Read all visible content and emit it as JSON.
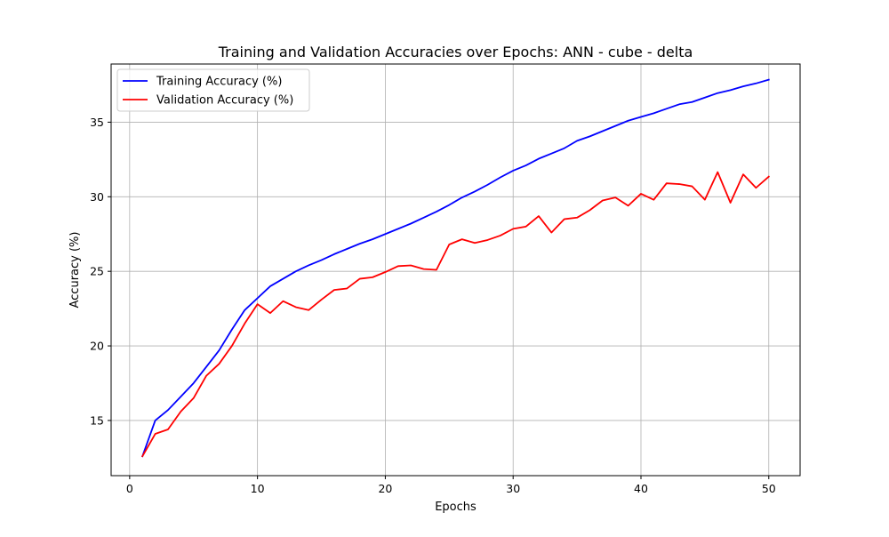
{
  "chart_data": {
    "type": "line",
    "title": "Training and Validation Accuracies over Epochs: ANN - cube - delta",
    "xlabel": "Epochs",
    "ylabel": "Accuracy (%)",
    "xlim": [
      -1.45,
      52.45
    ],
    "ylim": [
      11.3,
      38.9
    ],
    "xticks": [
      0,
      10,
      20,
      30,
      40,
      50
    ],
    "yticks": [
      15,
      20,
      25,
      30,
      35
    ],
    "grid": true,
    "legend_position": "upper left",
    "x": [
      1,
      2,
      3,
      4,
      5,
      6,
      7,
      8,
      9,
      10,
      11,
      12,
      13,
      14,
      15,
      16,
      17,
      18,
      19,
      20,
      21,
      22,
      23,
      24,
      25,
      26,
      27,
      28,
      29,
      30,
      31,
      32,
      33,
      34,
      35,
      36,
      37,
      38,
      39,
      40,
      41,
      42,
      43,
      44,
      45,
      46,
      47,
      48,
      49,
      50
    ],
    "series": [
      {
        "name": "Training Accuracy (%)",
        "color": "#0000ff",
        "values": [
          12.6,
          15.0,
          15.7,
          16.6,
          17.5,
          18.6,
          19.7,
          21.1,
          22.4,
          23.2,
          24.0,
          24.5,
          25.0,
          25.4,
          25.75,
          26.15,
          26.5,
          26.85,
          27.15,
          27.5,
          27.85,
          28.2,
          28.6,
          29.0,
          29.45,
          29.95,
          30.35,
          30.8,
          31.3,
          31.75,
          32.1,
          32.55,
          32.9,
          33.25,
          33.75,
          34.05,
          34.4,
          34.75,
          35.1,
          35.35,
          35.6,
          35.9,
          36.2,
          36.35,
          36.65,
          36.95,
          37.15,
          37.4,
          37.6,
          37.85
        ]
      },
      {
        "name": "Validation Accuracy (%)",
        "color": "#ff0000",
        "values": [
          12.6,
          14.1,
          14.4,
          15.6,
          16.5,
          18.0,
          18.8,
          20.0,
          21.5,
          22.8,
          22.2,
          23.0,
          22.6,
          22.4,
          23.1,
          23.75,
          23.85,
          24.5,
          24.6,
          24.95,
          25.35,
          25.4,
          25.15,
          25.1,
          26.8,
          27.15,
          26.9,
          27.1,
          27.4,
          27.85,
          28.0,
          28.7,
          27.6,
          28.5,
          28.6,
          29.1,
          29.75,
          29.95,
          29.4,
          30.2,
          29.8,
          30.9,
          30.85,
          30.7,
          29.8,
          31.65,
          29.6,
          31.5,
          30.6,
          31.35
        ]
      }
    ]
  }
}
